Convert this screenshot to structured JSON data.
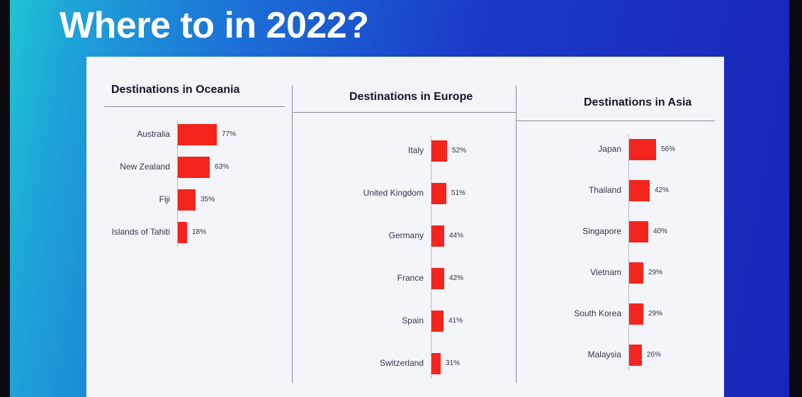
{
  "title": "Where to in 2022?",
  "chart_data": [
    {
      "type": "bar",
      "orientation": "horizontal",
      "title": "Destinations in Oceania",
      "categories": [
        "Australia",
        "New Zealand",
        "Fiji",
        "Islands of Tahiti"
      ],
      "values": [
        77,
        63,
        35,
        18
      ],
      "value_labels": [
        "77%",
        "63%",
        "35%",
        "18%"
      ],
      "unit": "%",
      "bar_color": "#f5241c"
    },
    {
      "type": "bar",
      "orientation": "horizontal",
      "title": "Destinations in Europe",
      "categories": [
        "Italy",
        "United Kingdom",
        "Germany",
        "France",
        "Spain",
        "Switzerland"
      ],
      "values": [
        52,
        51,
        44,
        42,
        41,
        31
      ],
      "value_labels": [
        "52%",
        "51%",
        "44%",
        "42%",
        "41%",
        "31%"
      ],
      "unit": "%",
      "bar_color": "#f5241c"
    },
    {
      "type": "bar",
      "orientation": "horizontal",
      "title": "Destinations in Asia",
      "categories": [
        "Japan",
        "Thailand",
        "Singapore",
        "Vietnam",
        "South Korea",
        "Malaysia"
      ],
      "values": [
        56,
        42,
        40,
        29,
        29,
        26
      ],
      "value_labels": [
        "56%",
        "42%",
        "40%",
        "29%",
        "29%",
        "26%"
      ],
      "unit": "%",
      "bar_color": "#f5241c"
    }
  ]
}
